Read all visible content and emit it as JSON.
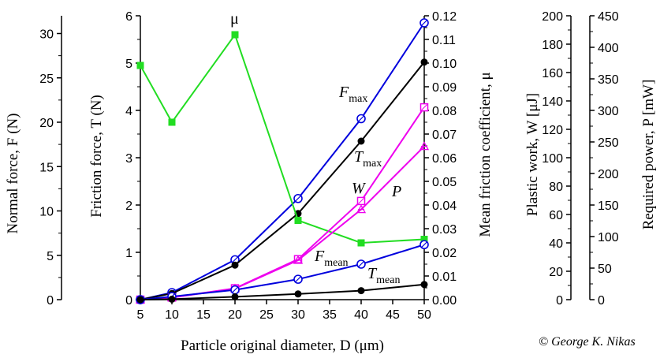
{
  "chart_data": {
    "type": "line",
    "x": [
      5,
      10,
      20,
      30,
      40,
      50
    ],
    "x_ticks": [
      5,
      10,
      15,
      20,
      25,
      30,
      35,
      40,
      45,
      50
    ],
    "xlim": [
      5,
      50
    ],
    "xlabel": "Particle original diameter, D (μm)",
    "axes": {
      "normal_force": {
        "label": "Normal force, F (N)",
        "lim": [
          0,
          32
        ],
        "ticks": [
          0,
          5,
          10,
          15,
          20,
          25,
          30
        ]
      },
      "friction_force": {
        "label": "Friction force, T (N)",
        "lim": [
          0,
          6
        ],
        "ticks": [
          0,
          1,
          2,
          3,
          4,
          5,
          6
        ]
      },
      "friction_coefficient": {
        "label": "Mean friction coefficient, μ",
        "lim": [
          0,
          0.12
        ],
        "ticks": [
          "0.00",
          "0.01",
          "0.02",
          "0.03",
          "0.04",
          "0.05",
          "0.06",
          "0.07",
          "0.08",
          "0.09",
          "0.10",
          "0.11",
          "0.12"
        ]
      },
      "plastic_work": {
        "label": "Plastic work, W [μJ]",
        "lim": [
          0,
          200
        ],
        "ticks": [
          0,
          20,
          40,
          60,
          80,
          100,
          120,
          140,
          160,
          180,
          200
        ]
      },
      "required_power": {
        "label": "Required power, P [mW]",
        "lim": [
          0,
          450
        ],
        "ticks": [
          0,
          50,
          100,
          150,
          200,
          250,
          300,
          350,
          400,
          450
        ]
      }
    },
    "series": [
      {
        "key": "Fmax",
        "axis": "normal_force",
        "color": "#0000dd",
        "marker": "circle-open",
        "values": [
          0,
          0.8,
          4.5,
          11.4,
          20.4,
          31.2
        ]
      },
      {
        "key": "Tmax",
        "axis": "friction_force",
        "color": "#000000",
        "marker": "circle-filled",
        "values": [
          0,
          0.13,
          0.73,
          1.82,
          3.35,
          5.02
        ]
      },
      {
        "key": "mu",
        "axis": "friction_coefficient",
        "color": "#22dd22",
        "marker": "square-filled",
        "values": [
          0.099,
          0.075,
          0.112,
          0.0335,
          0.024,
          0.0255
        ]
      },
      {
        "key": "W",
        "axis": "plastic_work",
        "color": "#ee00ee",
        "marker": "square-open",
        "values": [
          0,
          1.5,
          8,
          28.5,
          69.5,
          135.5
        ]
      },
      {
        "key": "P",
        "axis": "required_power",
        "color": "#ee00ee",
        "marker": "triangle",
        "values": [
          0,
          3.2,
          17.5,
          62.5,
          143,
          243
        ]
      },
      {
        "key": "Fmean",
        "axis": "normal_force",
        "color": "#0000dd",
        "marker": "circle-open",
        "values": [
          0,
          0.35,
          1.1,
          2.3,
          4.0,
          6.2
        ]
      },
      {
        "key": "Tmean",
        "axis": "friction_force",
        "color": "#000000",
        "marker": "circle-filled",
        "values": [
          0,
          0.01,
          0.06,
          0.12,
          0.19,
          0.32
        ]
      }
    ],
    "annotations": {
      "mu": {
        "main": "μ"
      },
      "Fmax": {
        "main": "F",
        "sub": "max"
      },
      "Tmax": {
        "main": "T",
        "sub": "max"
      },
      "W": {
        "main": "W"
      },
      "P": {
        "main": "P"
      },
      "Fmean": {
        "main": "F",
        "sub": "mean"
      },
      "Tmean": {
        "main": "T",
        "sub": "mean"
      }
    },
    "copyright": "© George K. Nikas"
  }
}
